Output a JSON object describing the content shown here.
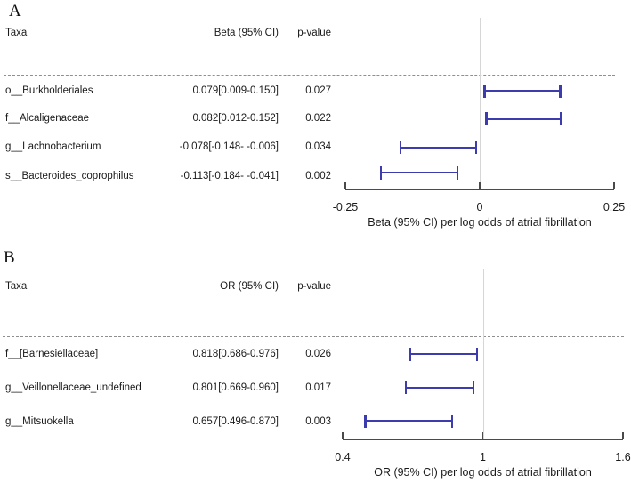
{
  "figure": {
    "colors": {
      "error_bar": "#3c3cae",
      "reference_line": "#d6d6d6",
      "dashed_separator": "#8f8f8f",
      "axis": "#4a4a4a",
      "text": "#1a1a1a"
    }
  },
  "chart_data": [
    {
      "type": "forest",
      "panel_label": "A",
      "columns": [
        "Taxa",
        "Beta (95% CI)",
        "p-value"
      ],
      "rows": [
        {
          "taxa": "o__Burkholderiales",
          "estimate_label": "0.079[0.009-0.150]",
          "p_value": "0.027",
          "estimate": 0.079,
          "ci_low": 0.009,
          "ci_high": 0.15
        },
        {
          "taxa": "f__Alcaligenaceae",
          "estimate_label": "0.082[0.012-0.152]",
          "p_value": "0.022",
          "estimate": 0.082,
          "ci_low": 0.012,
          "ci_high": 0.152
        },
        {
          "taxa": "g__Lachnobacterium",
          "estimate_label": "-0.078[-0.148- -0.006]",
          "p_value": "0.034",
          "estimate": -0.078,
          "ci_low": -0.148,
          "ci_high": -0.006
        },
        {
          "taxa": "s__Bacteroides_coprophilus",
          "estimate_label": "-0.113[-0.184- -0.041]",
          "p_value": "0.002",
          "estimate": -0.113,
          "ci_low": -0.184,
          "ci_high": -0.041
        }
      ],
      "x_tick_labels": [
        "-0.25",
        "0",
        "0.25"
      ],
      "x_tick_values": [
        -0.25,
        0,
        0.25
      ],
      "xlim": [
        -0.25,
        0.25
      ],
      "reference_value": 0,
      "xlabel": "Beta (95% CI) per log odds of atrial fibrillation"
    },
    {
      "type": "forest",
      "panel_label": "B",
      "columns": [
        "Taxa",
        "OR (95% CI)",
        "p-value"
      ],
      "rows": [
        {
          "taxa": "f__[Barnesiellaceae]",
          "estimate_label": "0.818[0.686-0.976]",
          "p_value": "0.026",
          "estimate": 0.818,
          "ci_low": 0.686,
          "ci_high": 0.976
        },
        {
          "taxa": "g__Veillonellaceae_undefined",
          "estimate_label": "0.801[0.669-0.960]",
          "p_value": "0.017",
          "estimate": 0.801,
          "ci_low": 0.669,
          "ci_high": 0.96
        },
        {
          "taxa": "g__Mitsuokella",
          "estimate_label": "0.657[0.496-0.870]",
          "p_value": "0.003",
          "estimate": 0.657,
          "ci_low": 0.496,
          "ci_high": 0.87
        }
      ],
      "x_tick_labels": [
        "0.4",
        "1",
        "1.6"
      ],
      "x_tick_values": [
        0.4,
        1,
        1.6
      ],
      "xlim": [
        0.4,
        1.6
      ],
      "reference_value": 1,
      "xlabel": "OR (95% CI) per log odds of atrial fibrillation"
    }
  ]
}
